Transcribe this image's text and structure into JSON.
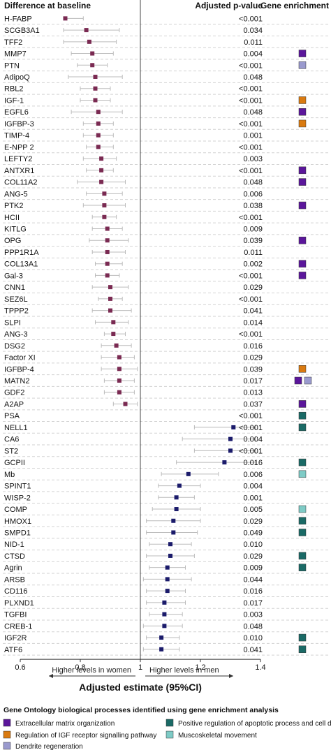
{
  "chart_data": {
    "type": "forest",
    "headers": {
      "left": "Difference at baseline",
      "pvalue": "Adjusted p-value",
      "enrichment": "Gene enrichment"
    },
    "xlabel": "Adjusted estimate (95%CI)",
    "xlim": [
      0.4,
      1.5
    ],
    "xticks": [
      0.6,
      0.8,
      1,
      1.2,
      1.4
    ],
    "xtick_labels": [
      "0.6",
      "0.8",
      "1",
      "1.2",
      "1.4"
    ],
    "reference_line": 1,
    "direction_labels": {
      "lower": "Higher levels in women",
      "higher": "Higher levels in men"
    },
    "colors": {
      "women_marker": "#7a2a52",
      "men_marker": "#1b1b6b",
      "ci_line": "#bbbbbb",
      "row_divider": "#d2d2d2"
    },
    "legend": {
      "title": "Gene Ontology biological processes identified using gene enrichment analysis",
      "items": [
        {
          "key": "ecm",
          "label": "Extracellular matrix organization",
          "color": "#5b169b"
        },
        {
          "key": "igf",
          "label": "Regulation of IGF receptor signalling pathway",
          "color": "#d97a10"
        },
        {
          "key": "dendrite",
          "label": "Dendrite regeneration",
          "color": "#9a9ace"
        },
        {
          "key": "apoptotic",
          "label": "Positive regulation of apoptotic process and cell death",
          "color": "#1a6a66"
        },
        {
          "key": "musculo",
          "label": "Muscoskeletal movement",
          "color": "#7ecbc6"
        }
      ]
    },
    "rows": [
      {
        "label": "H-FABP",
        "est": 0.75,
        "lo": 0.69,
        "hi": 0.81,
        "p": "<0.001",
        "enrich": []
      },
      {
        "label": "SCGB3A1",
        "est": 0.82,
        "lo": 0.73,
        "hi": 0.93,
        "p": "0.034",
        "enrich": []
      },
      {
        "label": "TFF2",
        "est": 0.83,
        "lo": 0.74,
        "hi": 0.92,
        "p": "0.011",
        "enrich": []
      },
      {
        "label": "MMP7",
        "est": 0.84,
        "lo": 0.77,
        "hi": 0.91,
        "p": "0.004",
        "enrich": [
          "ecm"
        ]
      },
      {
        "label": "PTN",
        "est": 0.84,
        "lo": 0.79,
        "hi": 0.89,
        "p": "<0.001",
        "enrich": [
          "dendrite"
        ]
      },
      {
        "label": "AdipoQ",
        "est": 0.85,
        "lo": 0.76,
        "hi": 0.94,
        "p": "0.048",
        "enrich": []
      },
      {
        "label": "RBL2",
        "est": 0.85,
        "lo": 0.8,
        "hi": 0.9,
        "p": "<0.001",
        "enrich": []
      },
      {
        "label": "IGF-1",
        "est": 0.85,
        "lo": 0.8,
        "hi": 0.9,
        "p": "<0.001",
        "enrich": [
          "igf"
        ]
      },
      {
        "label": "EGFL6",
        "est": 0.86,
        "lo": 0.77,
        "hi": 0.94,
        "p": "0.048",
        "enrich": [
          "ecm"
        ]
      },
      {
        "label": "IGFBP-3",
        "est": 0.86,
        "lo": 0.81,
        "hi": 0.91,
        "p": "<0.001",
        "enrich": [
          "igf"
        ]
      },
      {
        "label": "TIMP-4",
        "est": 0.86,
        "lo": 0.81,
        "hi": 0.91,
        "p": "0.001",
        "enrich": []
      },
      {
        "label": "E-NPP 2",
        "est": 0.86,
        "lo": 0.82,
        "hi": 0.91,
        "p": "<0.001",
        "enrich": []
      },
      {
        "label": "LEFTY2",
        "est": 0.87,
        "lo": 0.81,
        "hi": 0.92,
        "p": "0.003",
        "enrich": []
      },
      {
        "label": "ANTXR1",
        "est": 0.87,
        "lo": 0.82,
        "hi": 0.91,
        "p": "<0.001",
        "enrich": [
          "ecm"
        ]
      },
      {
        "label": "COL11A2",
        "est": 0.87,
        "lo": 0.79,
        "hi": 0.95,
        "p": "0.048",
        "enrich": [
          "ecm"
        ]
      },
      {
        "label": "ANG-5",
        "est": 0.88,
        "lo": 0.82,
        "hi": 0.94,
        "p": "0.006",
        "enrich": []
      },
      {
        "label": "PTK2",
        "est": 0.88,
        "lo": 0.81,
        "hi": 0.95,
        "p": "0.038",
        "enrich": [
          "ecm"
        ]
      },
      {
        "label": "HCII",
        "est": 0.88,
        "lo": 0.84,
        "hi": 0.92,
        "p": "<0.001",
        "enrich": []
      },
      {
        "label": "KITLG",
        "est": 0.89,
        "lo": 0.84,
        "hi": 0.94,
        "p": "0.009",
        "enrich": []
      },
      {
        "label": "OPG",
        "est": 0.89,
        "lo": 0.83,
        "hi": 0.96,
        "p": "0.039",
        "enrich": [
          "ecm"
        ]
      },
      {
        "label": "PPP1R1A",
        "est": 0.89,
        "lo": 0.84,
        "hi": 0.95,
        "p": "0.011",
        "enrich": []
      },
      {
        "label": "COL13A1",
        "est": 0.89,
        "lo": 0.85,
        "hi": 0.94,
        "p": "0.002",
        "enrich": [
          "ecm"
        ]
      },
      {
        "label": "Gal-3",
        "est": 0.89,
        "lo": 0.85,
        "hi": 0.93,
        "p": "<0.001",
        "enrich": [
          "ecm"
        ]
      },
      {
        "label": "CNN1",
        "est": 0.9,
        "lo": 0.84,
        "hi": 0.96,
        "p": "0.029",
        "enrich": []
      },
      {
        "label": "SEZ6L",
        "est": 0.9,
        "lo": 0.86,
        "hi": 0.94,
        "p": "<0.001",
        "enrich": []
      },
      {
        "label": "TPPP2",
        "est": 0.9,
        "lo": 0.84,
        "hi": 0.97,
        "p": "0.041",
        "enrich": []
      },
      {
        "label": "SLPI",
        "est": 0.91,
        "lo": 0.85,
        "hi": 0.96,
        "p": "0.014",
        "enrich": []
      },
      {
        "label": "ANG-3",
        "est": 0.91,
        "lo": 0.88,
        "hi": 0.95,
        "p": "<0.001",
        "enrich": []
      },
      {
        "label": "DSG2",
        "est": 0.92,
        "lo": 0.87,
        "hi": 0.97,
        "p": "0.016",
        "enrich": []
      },
      {
        "label": "Factor XI",
        "est": 0.93,
        "lo": 0.87,
        "hi": 0.98,
        "p": "0.029",
        "enrich": []
      },
      {
        "label": "IGFBP-4",
        "est": 0.93,
        "lo": 0.87,
        "hi": 0.99,
        "p": "0.039",
        "enrich": [
          "igf"
        ]
      },
      {
        "label": "MATN2",
        "est": 0.93,
        "lo": 0.88,
        "hi": 0.98,
        "p": "0.017",
        "enrich": [
          "ecm",
          "dendrite"
        ]
      },
      {
        "label": "GDF2",
        "est": 0.93,
        "lo": 0.88,
        "hi": 0.98,
        "p": "0.013",
        "enrich": []
      },
      {
        "label": "A2AP",
        "est": 0.95,
        "lo": 0.91,
        "hi": 0.99,
        "p": "0.037",
        "enrich": [
          "ecm"
        ]
      },
      {
        "label": "PSA",
        "est": 2.35,
        "lo": 1.4,
        "hi": 3.9,
        "p": "<0.001",
        "enrich": [
          "apoptotic"
        ]
      },
      {
        "label": "NELL1",
        "est": 1.31,
        "lo": 1.18,
        "hi": 1.4,
        "p": "<0.001",
        "enrich": [
          "apoptotic"
        ]
      },
      {
        "label": "CA6",
        "est": 1.3,
        "lo": 1.14,
        "hi": 1.46,
        "p": "0.004",
        "enrich": []
      },
      {
        "label": "ST2",
        "est": 1.3,
        "lo": 1.18,
        "hi": 1.42,
        "p": "<0.001",
        "enrich": []
      },
      {
        "label": "GCPII",
        "est": 1.28,
        "lo": 1.12,
        "hi": 1.44,
        "p": "0.016",
        "enrich": [
          "apoptotic"
        ]
      },
      {
        "label": "Mb",
        "est": 1.16,
        "lo": 1.07,
        "hi": 1.26,
        "p": "0.006",
        "enrich": [
          "musculo"
        ]
      },
      {
        "label": "SPINT1",
        "est": 1.13,
        "lo": 1.06,
        "hi": 1.2,
        "p": "0.004",
        "enrich": []
      },
      {
        "label": "WISP-2",
        "est": 1.12,
        "lo": 1.06,
        "hi": 1.18,
        "p": "0.001",
        "enrich": []
      },
      {
        "label": "COMP",
        "est": 1.12,
        "lo": 1.04,
        "hi": 1.2,
        "p": "0.005",
        "enrich": [
          "musculo"
        ]
      },
      {
        "label": "HMOX1",
        "est": 1.11,
        "lo": 1.02,
        "hi": 1.2,
        "p": "0.029",
        "enrich": [
          "apoptotic"
        ]
      },
      {
        "label": "SMPD1",
        "est": 1.11,
        "lo": 1.02,
        "hi": 1.19,
        "p": "0.049",
        "enrich": [
          "apoptotic"
        ]
      },
      {
        "label": "NID-1",
        "est": 1.1,
        "lo": 1.03,
        "hi": 1.17,
        "p": "0.010",
        "enrich": []
      },
      {
        "label": "CTSD",
        "est": 1.1,
        "lo": 1.02,
        "hi": 1.18,
        "p": "0.029",
        "enrich": [
          "apoptotic"
        ]
      },
      {
        "label": "Agrin",
        "est": 1.09,
        "lo": 1.03,
        "hi": 1.15,
        "p": "0.009",
        "enrich": [
          "apoptotic"
        ]
      },
      {
        "label": "ARSB",
        "est": 1.09,
        "lo": 1.01,
        "hi": 1.17,
        "p": "0.044",
        "enrich": []
      },
      {
        "label": "CD116",
        "est": 1.09,
        "lo": 1.02,
        "hi": 1.15,
        "p": "0.016",
        "enrich": []
      },
      {
        "label": "PLXND1",
        "est": 1.08,
        "lo": 1.02,
        "hi": 1.15,
        "p": "0.017",
        "enrich": []
      },
      {
        "label": "TGFBI",
        "est": 1.08,
        "lo": 1.03,
        "hi": 1.14,
        "p": "0.003",
        "enrich": []
      },
      {
        "label": "CREB-1",
        "est": 1.08,
        "lo": 1.01,
        "hi": 1.14,
        "p": "0.048",
        "enrich": []
      },
      {
        "label": "IGF2R",
        "est": 1.07,
        "lo": 1.02,
        "hi": 1.13,
        "p": "0.010",
        "enrich": [
          "apoptotic"
        ]
      },
      {
        "label": "ATF6",
        "est": 1.07,
        "lo": 1.01,
        "hi": 1.13,
        "p": "0.041",
        "enrich": [
          "apoptotic"
        ]
      }
    ]
  }
}
